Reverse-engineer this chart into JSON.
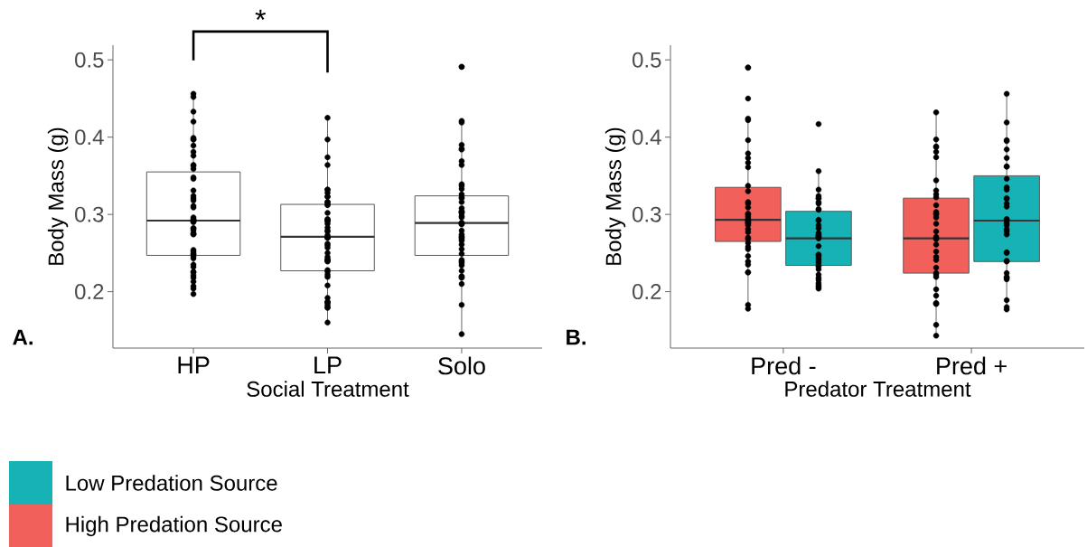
{
  "chart_data": [
    {
      "type": "box",
      "categories": [
        "HP",
        "LP",
        "Solo"
      ],
      "xlabel": "Social Treatment",
      "ylabel": "Body Mass (g)",
      "ylim": [
        0.127,
        0.519
      ],
      "yticks": [
        0.2,
        0.3,
        0.4,
        0.5
      ],
      "annotations": [
        "*",
        "A."
      ],
      "series": [
        {
          "type": "box",
          "color": "#ffffff",
          "boxes": [
            {
              "low": 0.197,
              "q1": 0.247,
              "median": 0.292,
              "q3": 0.355,
              "high": 0.456
            },
            {
              "low": 0.161,
              "q1": 0.227,
              "median": 0.271,
              "q3": 0.313,
              "high": 0.424
            },
            {
              "low": 0.145,
              "q1": 0.247,
              "median": 0.289,
              "q3": 0.324,
              "high": 0.42
            }
          ]
        },
        {
          "type": "scatter",
          "color": "#000000",
          "x": [
            "HP",
            "HP",
            "HP",
            "HP",
            "HP",
            "HP",
            "HP",
            "HP",
            "HP",
            "HP",
            "HP",
            "HP",
            "HP",
            "HP",
            "HP",
            "HP",
            "HP",
            "HP",
            "HP",
            "HP",
            "HP",
            "HP",
            "HP",
            "HP",
            "HP",
            "HP",
            "HP",
            "HP",
            "HP",
            "HP",
            "HP",
            "HP",
            "HP",
            "HP",
            "HP",
            "HP",
            "HP",
            "HP",
            "HP",
            "HP",
            "HP",
            "HP",
            "HP",
            "HP",
            "HP",
            "HP",
            "HP",
            "HP",
            "HP",
            "LP",
            "LP",
            "LP",
            "LP",
            "LP",
            "LP",
            "LP",
            "LP",
            "LP",
            "LP",
            "LP",
            "LP",
            "LP",
            "LP",
            "LP",
            "LP",
            "LP",
            "LP",
            "LP",
            "LP",
            "LP",
            "LP",
            "LP",
            "LP",
            "LP",
            "LP",
            "LP",
            "LP",
            "LP",
            "LP",
            "LP",
            "LP",
            "LP",
            "LP",
            "LP",
            "LP",
            "LP",
            "LP",
            "LP",
            "LP",
            "LP",
            "LP",
            "LP",
            "LP",
            "LP",
            "LP",
            "LP",
            "LP",
            "LP",
            "Solo",
            "Solo",
            "Solo",
            "Solo",
            "Solo",
            "Solo",
            "Solo",
            "Solo",
            "Solo",
            "Solo",
            "Solo",
            "Solo",
            "Solo",
            "Solo",
            "Solo",
            "Solo",
            "Solo",
            "Solo",
            "Solo",
            "Solo",
            "Solo",
            "Solo",
            "Solo",
            "Solo",
            "Solo",
            "Solo",
            "Solo",
            "Solo",
            "Solo",
            "Solo",
            "Solo",
            "Solo",
            "Solo",
            "Solo",
            "Solo",
            "Solo",
            "Solo",
            "Solo",
            "Solo",
            "Solo",
            "Solo",
            "Solo",
            "Solo",
            "Solo",
            "Solo",
            "Solo",
            "Solo",
            "Solo"
          ],
          "values": [
            0.456,
            0.452,
            0.433,
            0.42,
            0.399,
            0.397,
            0.397,
            0.389,
            0.381,
            0.376,
            0.364,
            0.363,
            0.359,
            0.348,
            0.346,
            0.331,
            0.324,
            0.321,
            0.318,
            0.311,
            0.309,
            0.296,
            0.294,
            0.291,
            0.291,
            0.293,
            0.29,
            0.282,
            0.282,
            0.279,
            0.275,
            0.274,
            0.275,
            0.252,
            0.254,
            0.249,
            0.248,
            0.246,
            0.243,
            0.235,
            0.232,
            0.226,
            0.225,
            0.221,
            0.218,
            0.213,
            0.207,
            0.204,
            0.197,
            0.425,
            0.397,
            0.374,
            0.364,
            0.332,
            0.332,
            0.323,
            0.316,
            0.328,
            0.323,
            0.316,
            0.313,
            0.312,
            0.302,
            0.294,
            0.292,
            0.291,
            0.293,
            0.288,
            0.283,
            0.279,
            0.278,
            0.273,
            0.27,
            0.27,
            0.27,
            0.27,
            0.262,
            0.26,
            0.257,
            0.25,
            0.241,
            0.242,
            0.239,
            0.245,
            0.24,
            0.228,
            0.226,
            0.222,
            0.219,
            0.208,
            0.192,
            0.187,
            0.186,
            0.183,
            0.18,
            0.186,
            0.179,
            0.16,
            0.491,
            0.491,
            0.419,
            0.421,
            0.39,
            0.384,
            0.385,
            0.369,
            0.364,
            0.337,
            0.339,
            0.333,
            0.326,
            0.322,
            0.321,
            0.316,
            0.308,
            0.303,
            0.303,
            0.304,
            0.302,
            0.298,
            0.296,
            0.289,
            0.289,
            0.288,
            0.287,
            0.271,
            0.27,
            0.271,
            0.268,
            0.266,
            0.274,
            0.279,
            0.261,
            0.255,
            0.249,
            0.241,
            0.239,
            0.237,
            0.234,
            0.227,
            0.22,
            0.219,
            0.218,
            0.21,
            0.183,
            0.145
          ]
        }
      ]
    },
    {
      "type": "box",
      "categories": [
        "Pred -",
        "Pred +"
      ],
      "xlabel": "Predator Treatment",
      "ylabel": "Body Mass (g)",
      "ylim": [
        0.127,
        0.519
      ],
      "yticks": [
        0.2,
        0.3,
        0.4,
        0.5
      ],
      "annotations": [
        "B."
      ],
      "legend": "bottom",
      "series": [
        {
          "type": "box",
          "name": "High Predation Source",
          "color": "#f2605b",
          "boxes": [
            {
              "low": 0.178,
              "q1": 0.265,
              "median": 0.293,
              "q3": 0.335,
              "high": 0.423
            },
            {
              "low": 0.144,
              "q1": 0.224,
              "median": 0.269,
              "q3": 0.321,
              "high": 0.432
            }
          ]
        },
        {
          "type": "box",
          "name": "Low Predation Source",
          "color": "#17b2b6",
          "boxes": [
            {
              "low": 0.205,
              "q1": 0.234,
              "median": 0.269,
              "q3": 0.304,
              "high": 0.356
            },
            {
              "low": 0.18,
              "q1": 0.239,
              "median": 0.292,
              "q3": 0.35,
              "high": 0.456
            }
          ]
        },
        {
          "type": "scatter",
          "color": "#000000",
          "x": [
            "Pred -",
            "Pred -",
            "Pred -",
            "Pred -",
            "Pred -",
            "Pred -",
            "Pred -",
            "Pred -",
            "Pred -",
            "Pred -",
            "Pred -",
            "Pred -",
            "Pred -",
            "Pred -",
            "Pred -",
            "Pred -",
            "Pred -",
            "Pred -",
            "Pred -",
            "Pred -",
            "Pred -",
            "Pred -",
            "Pred -",
            "Pred -",
            "Pred -",
            "Pred -",
            "Pred -",
            "Pred -",
            "Pred -",
            "Pred -",
            "Pred -",
            "Pred -",
            "Pred -",
            "Pred -",
            "Pred -",
            "Pred -",
            "Pred -",
            "Pred -",
            "Pred -",
            "Pred +",
            "Pred +",
            "Pred +",
            "Pred +",
            "Pred +",
            "Pred +",
            "Pred +",
            "Pred +",
            "Pred +",
            "Pred +",
            "Pred +",
            "Pred +",
            "Pred +",
            "Pred +",
            "Pred +",
            "Pred +",
            "Pred +",
            "Pred +",
            "Pred +",
            "Pred +",
            "Pred +",
            "Pred +",
            "Pred +",
            "Pred +",
            "Pred +",
            "Pred +",
            "Pred +",
            "Pred +",
            "Pred +",
            "Pred +",
            "Pred +",
            "Pred +",
            "Pred +",
            "Pred +",
            "Pred +"
          ],
          "values": [
            0.49,
            0.49,
            0.45,
            0.424,
            0.422,
            0.396,
            0.379,
            0.373,
            0.367,
            0.361,
            0.337,
            0.33,
            0.316,
            0.314,
            0.309,
            0.301,
            0.3,
            0.297,
            0.294,
            0.293,
            0.29,
            0.289,
            0.288,
            0.286,
            0.291,
            0.281,
            0.277,
            0.27,
            0.268,
            0.263,
            0.258,
            0.255,
            0.246,
            0.239,
            0.235,
            0.225,
            0.225,
            0.183,
            0.178,
            0.432,
            0.397,
            0.388,
            0.387,
            0.381,
            0.374,
            0.344,
            0.331,
            0.326,
            0.322,
            0.312,
            0.303,
            0.3,
            0.301,
            0.296,
            0.288,
            0.278,
            0.271,
            0.269,
            0.268,
            0.261,
            0.252,
            0.245,
            0.241,
            0.231,
            0.224,
            0.222,
            0.219,
            0.203,
            0.195,
            0.185,
            0.185,
            0.184,
            0.157,
            0.143
          ]
        },
        {
          "type": "scatter",
          "color": "#000000",
          "x": [
            "Pred -",
            "Pred -",
            "Pred -",
            "Pred -",
            "Pred -",
            "Pred -",
            "Pred -",
            "Pred -",
            "Pred -",
            "Pred -",
            "Pred -",
            "Pred -",
            "Pred -",
            "Pred -",
            "Pred -",
            "Pred -",
            "Pred -",
            "Pred -",
            "Pred -",
            "Pred -",
            "Pred -",
            "Pred -",
            "Pred -",
            "Pred -",
            "Pred -",
            "Pred -",
            "Pred -",
            "Pred -",
            "Pred -",
            "Pred -",
            "Pred -",
            "Pred -",
            "Pred -",
            "Pred -",
            "Pred -",
            "Pred -",
            "Pred +",
            "Pred +",
            "Pred +",
            "Pred +",
            "Pred +",
            "Pred +",
            "Pred +",
            "Pred +",
            "Pred +",
            "Pred +",
            "Pred +",
            "Pred +",
            "Pred +",
            "Pred +",
            "Pred +",
            "Pred +",
            "Pred +",
            "Pred +",
            "Pred +",
            "Pred +",
            "Pred +",
            "Pred +",
            "Pred +",
            "Pred +",
            "Pred +",
            "Pred +",
            "Pred +",
            "Pred +",
            "Pred +",
            "Pred +",
            "Pred +",
            "Pred +",
            "Pred +"
          ],
          "values": [
            0.417,
            0.356,
            0.332,
            0.324,
            0.321,
            0.321,
            0.316,
            0.314,
            0.307,
            0.306,
            0.293,
            0.292,
            0.286,
            0.282,
            0.276,
            0.273,
            0.271,
            0.269,
            0.27,
            0.273,
            0.259,
            0.247,
            0.244,
            0.248,
            0.241,
            0.238,
            0.234,
            0.229,
            0.233,
            0.222,
            0.218,
            0.215,
            0.211,
            0.206,
            0.204,
            0.208,
            0.456,
            0.419,
            0.396,
            0.395,
            0.384,
            0.373,
            0.362,
            0.362,
            0.346,
            0.335,
            0.332,
            0.321,
            0.314,
            0.32,
            0.31,
            0.294,
            0.293,
            0.289,
            0.286,
            0.281,
            0.278,
            0.274,
            0.251,
            0.25,
            0.24,
            0.239,
            0.219,
            0.216,
            0.218,
            0.224,
            0.189,
            0.18,
            0.177
          ]
        }
      ]
    }
  ]
}
